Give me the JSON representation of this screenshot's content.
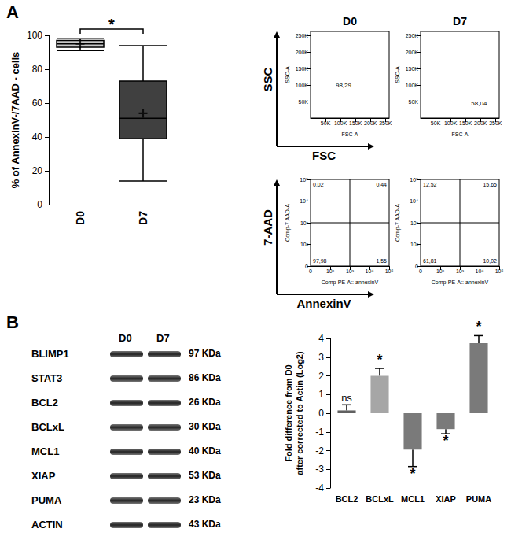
{
  "panel_labels": [
    "A",
    "B"
  ],
  "flow_axis_labels": [
    {
      "y": "SSC",
      "x": "FSC"
    },
    {
      "y": "7-AAD",
      "x": "AnnexinV"
    }
  ],
  "chart_data": [
    {
      "type": "boxplot",
      "ylabel": "% of AnnexinV-/7AAD - cells",
      "categories": [
        "D0",
        "D7"
      ],
      "boxes": [
        [
          91,
          93,
          95,
          97,
          98
        ],
        [
          14,
          39,
          51,
          73,
          94
        ]
      ],
      "means": [
        95,
        54
      ],
      "colors": [
        "#c8c8c8",
        "#404040"
      ],
      "ylim": [
        0,
        100
      ],
      "yticks": [
        0,
        20,
        40,
        60,
        80,
        100
      ],
      "grid": false,
      "significance": {
        "label": "*",
        "between": [
          "D0",
          "D7"
        ]
      }
    },
    {
      "type": "flow_dot",
      "title": "D0",
      "xlabel": "FSC-A",
      "ylabel": "SSC-A",
      "xlim": [
        0,
        262144
      ],
      "ylim": [
        0,
        262144
      ],
      "xticks": [
        {
          "value": 50000,
          "label": "50K"
        },
        {
          "value": 100000,
          "label": "100K"
        },
        {
          "value": 150000,
          "label": "150K"
        },
        {
          "value": 200000,
          "label": "200K"
        },
        {
          "value": 250000,
          "label": "250K"
        }
      ],
      "yticks": [
        {
          "value": 50000,
          "label": "50K"
        },
        {
          "value": 100000,
          "label": "100K"
        },
        {
          "value": 150000,
          "label": "150K"
        },
        {
          "value": 200000,
          "label": "200K"
        },
        {
          "value": 250000,
          "label": "250K"
        }
      ],
      "gate_label": "98,29",
      "gate_label_at": [
        110000,
        100000
      ]
    },
    {
      "type": "flow_dot",
      "title": "D7",
      "xlabel": "FSC-A",
      "ylabel": "SSC-A",
      "xlim": [
        0,
        262144
      ],
      "ylim": [
        0,
        262144
      ],
      "xticks": [
        {
          "value": 50000,
          "label": "50K"
        },
        {
          "value": 100000,
          "label": "100K"
        },
        {
          "value": 150000,
          "label": "150K"
        },
        {
          "value": 200000,
          "label": "200K"
        },
        {
          "value": 250000,
          "label": "250K"
        }
      ],
      "yticks": [
        {
          "value": 50000,
          "label": "50K"
        },
        {
          "value": 100000,
          "label": "100K"
        },
        {
          "value": 150000,
          "label": "150K"
        },
        {
          "value": 200000,
          "label": "200K"
        },
        {
          "value": 250000,
          "label": "250K"
        }
      ],
      "gate_label": "58,04",
      "gate_label_at": [
        195000,
        45000
      ]
    },
    {
      "type": "quadrant",
      "xlabel": "Comp-PE-A:: annexinV",
      "ylabel": "Comp-7 AAD-A",
      "categories": [
        "0",
        "10²",
        "10³",
        "10⁴",
        "10⁵"
      ],
      "y_categories": [
        "0",
        "10²",
        "10³",
        "10⁴",
        "10⁵"
      ],
      "quadrant_at": [
        "10³",
        "10³"
      ],
      "quadrants": {
        "upper_left": "0,02",
        "upper_right": "0,44",
        "lower_left": "97,98",
        "lower_right": "1,55"
      }
    },
    {
      "type": "quadrant",
      "xlabel": "Comp-PE-A:: annexinV",
      "ylabel": "Comp-7 AAD-A",
      "categories": [
        "0",
        "10²",
        "10³",
        "10⁴",
        "10⁵"
      ],
      "y_categories": [
        "0",
        "10²",
        "10³",
        "10⁴",
        "10⁵"
      ],
      "quadrant_at": [
        "10³",
        "10³"
      ],
      "quadrants": {
        "upper_left": "12,52",
        "upper_right": "15,65",
        "lower_left": "61,81",
        "lower_right": "10,02"
      }
    },
    {
      "type": "bar",
      "ylabel": "Fold difference from D0\nafter corrected to Actin (Log2)",
      "categories": [
        "BCL2",
        "BCLxL",
        "MCL1",
        "XIAP",
        "PUMA"
      ],
      "values": [
        0.15,
        2.0,
        -1.95,
        -0.85,
        3.75
      ],
      "errors": [
        0.3,
        0.4,
        0.9,
        0.25,
        0.4
      ],
      "significance": [
        "ns",
        "*",
        "*",
        "*",
        "*"
      ],
      "colors": [
        "#606060",
        "#a6a6a6",
        "#7a7a7a",
        "#7a7a7a",
        "#7a7a7a"
      ],
      "ylim": [
        -4,
        4
      ],
      "yticks": [
        -4,
        -3,
        -2,
        -1,
        0,
        1,
        2,
        3,
        4
      ],
      "grid": false
    }
  ],
  "western_blot": {
    "lanes": [
      "D0",
      "D7"
    ],
    "rows": [
      {
        "protein": "BLIMP1",
        "size": "97 KDa"
      },
      {
        "protein": "STAT3",
        "size": "86 KDa"
      },
      {
        "protein": "BCL2",
        "size": "26 KDa"
      },
      {
        "protein": "BCLxL",
        "size": "30 KDa"
      },
      {
        "protein": "MCL1",
        "size": "40 KDa"
      },
      {
        "protein": "XIAP",
        "size": "53 KDa"
      },
      {
        "protein": "PUMA",
        "size": "23 KDa"
      },
      {
        "protein": "ACTIN",
        "size": "43 KDa"
      }
    ]
  }
}
